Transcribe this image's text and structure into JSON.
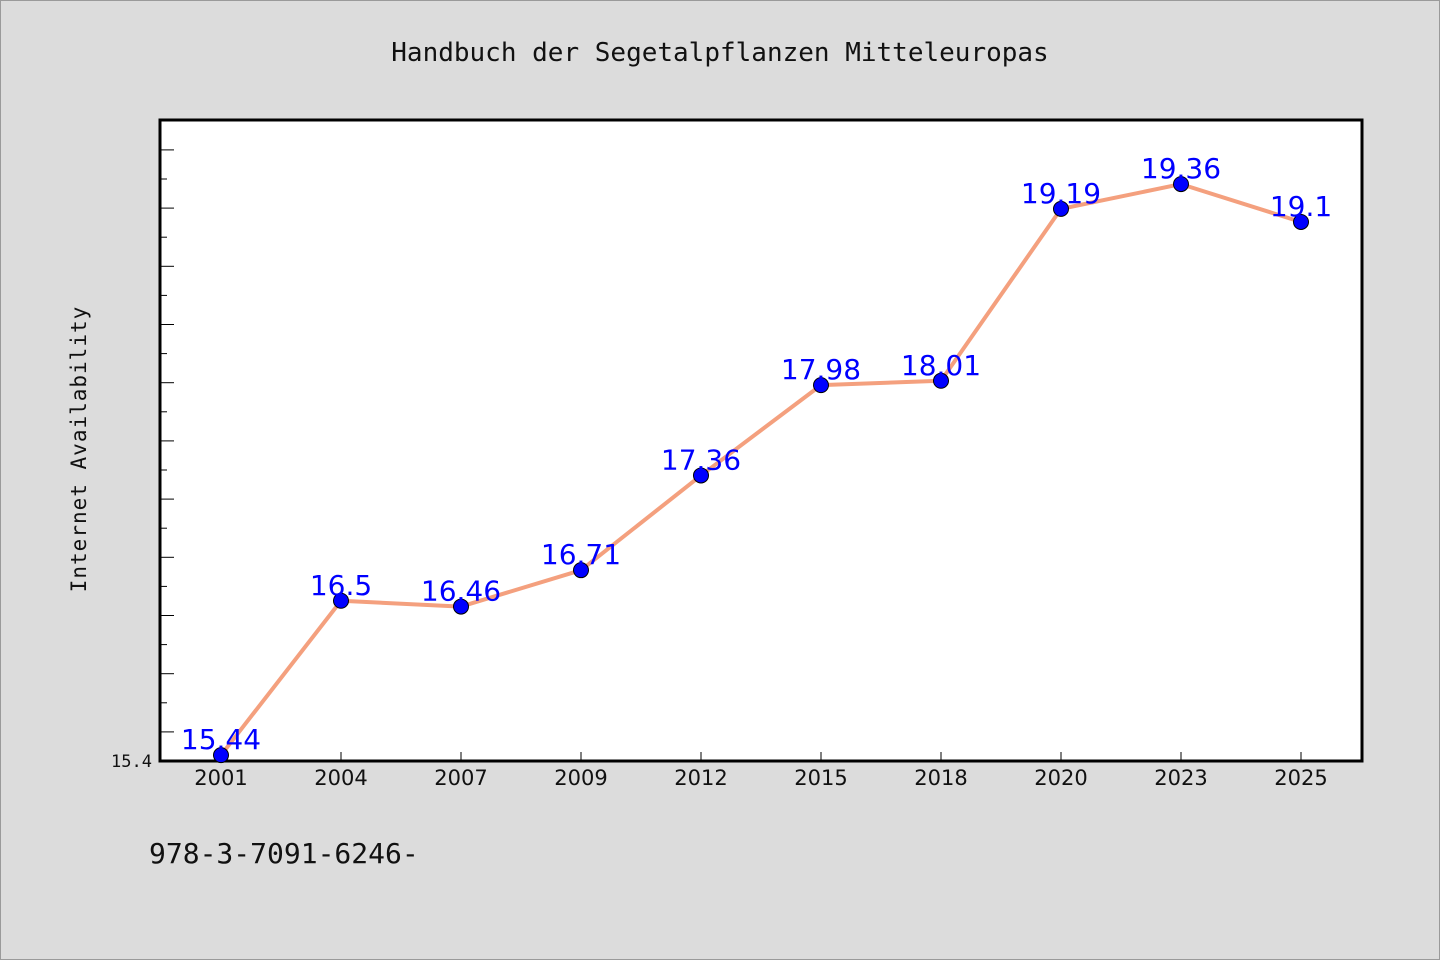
{
  "chart_data": {
    "type": "line",
    "title": "Handbuch der Segetalpflanzen Mitteleuropas",
    "xlabel": "",
    "ylabel": "Internet Availability",
    "categories": [
      "2001",
      "2004",
      "2007",
      "2009",
      "2012",
      "2015",
      "2018",
      "2020",
      "2023",
      "2025"
    ],
    "series": [
      {
        "values": [
          15.44,
          16.5,
          16.46,
          16.71,
          17.36,
          17.98,
          18.01,
          19.19,
          19.36,
          19.1
        ]
      }
    ],
    "data_labels": [
      "15.44",
      "16.5",
      "16.46",
      "16.71",
      "17.36",
      "17.98",
      "18.01",
      "19.19",
      "19.36",
      "19.1"
    ],
    "ylim": [
      15.4,
      19.8
    ],
    "y_tick_labels": [
      "15.4"
    ],
    "grid": false,
    "legend": "none",
    "colors": {
      "line": "#f4a07e",
      "marker": "#0000ff",
      "data_label": "#0000ff",
      "background": "#dcdcdc",
      "plot_area": "#ffffff"
    }
  },
  "footer_text": "978-3-7091-6246-"
}
